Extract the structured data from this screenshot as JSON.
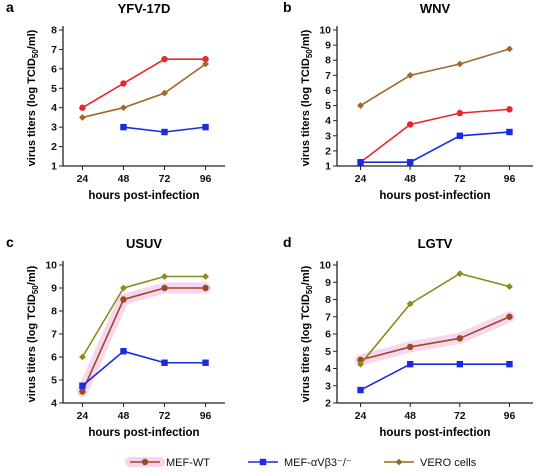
{
  "colors": {
    "mef_wt": "#e8262b",
    "mef_knockout": "#1b2be0",
    "vero": "#a0682a",
    "mef_wt_usuv_lgtv": "#9c4a24",
    "vero_usuv": "#8c8a1a",
    "highlight": "#f6d3ee",
    "axis": "#222222"
  },
  "legend": {
    "items": [
      {
        "label": "MEF-WT",
        "color": "#9c4a24",
        "marker": "circle"
      },
      {
        "label": "MEF-αVβ3⁻/⁻",
        "color": "#1b2be0",
        "marker": "square"
      },
      {
        "label": "VERO cells",
        "color": "#8c6d1f",
        "marker": "diamond"
      }
    ]
  },
  "chart_data": [
    {
      "panel": "a",
      "title": "YFV-17D",
      "type": "line",
      "xlabel": "hours post-infection",
      "ylabel": "virus titers (log TCID50/ml)",
      "categories": [
        "24",
        "48",
        "72",
        "96"
      ],
      "ylim": [
        1,
        8
      ],
      "yticks": [
        1,
        2,
        3,
        4,
        5,
        6,
        7,
        8
      ],
      "series": [
        {
          "name": "MEF-WT",
          "color": "#e8262b",
          "marker": "circle",
          "values": [
            4.0,
            5.25,
            6.5,
            6.5
          ]
        },
        {
          "name": "MEF-αVβ3⁻/⁻",
          "color": "#1b2be0",
          "marker": "square",
          "values": [
            null,
            3.0,
            2.75,
            3.0
          ]
        },
        {
          "name": "VERO cells",
          "color": "#a0682a",
          "marker": "diamond",
          "values": [
            3.5,
            4.0,
            4.75,
            6.25
          ]
        }
      ]
    },
    {
      "panel": "b",
      "title": "WNV",
      "type": "line",
      "xlabel": "hours post-infection",
      "ylabel": "virus titers (log TCID50/ml)",
      "categories": [
        "24",
        "48",
        "72",
        "96"
      ],
      "ylim": [
        1,
        10
      ],
      "yticks": [
        1,
        2,
        3,
        4,
        5,
        6,
        7,
        8,
        9,
        10
      ],
      "series": [
        {
          "name": "MEF-WT",
          "color": "#e8262b",
          "marker": "circle",
          "values": [
            1.25,
            3.75,
            4.5,
            4.75
          ]
        },
        {
          "name": "MEF-αVβ3⁻/⁻",
          "color": "#1b2be0",
          "marker": "square",
          "values": [
            1.25,
            1.25,
            3.0,
            3.25
          ]
        },
        {
          "name": "VERO cells",
          "color": "#a0682a",
          "marker": "diamond",
          "values": [
            5.0,
            7.0,
            7.75,
            8.75
          ]
        }
      ]
    },
    {
      "panel": "c",
      "title": "USUV",
      "type": "line",
      "xlabel": "hours post-infection",
      "ylabel": "virus titers (log TCID50/ml)",
      "categories": [
        "24",
        "48",
        "72",
        "96"
      ],
      "ylim": [
        4,
        10
      ],
      "yticks": [
        4,
        5,
        6,
        7,
        8,
        9,
        10
      ],
      "series": [
        {
          "name": "MEF-WT",
          "color": "#9c4a24",
          "marker": "circle",
          "values": [
            4.5,
            8.5,
            9.0,
            9.0
          ],
          "highlight": true
        },
        {
          "name": "MEF-αVβ3⁻/⁻",
          "color": "#1b2be0",
          "marker": "square",
          "values": [
            4.75,
            6.25,
            5.75,
            5.75
          ]
        },
        {
          "name": "VERO cells",
          "color": "#8c8a1a",
          "marker": "diamond",
          "values": [
            6.0,
            9.0,
            9.5,
            9.5
          ]
        }
      ]
    },
    {
      "panel": "d",
      "title": "LGTV",
      "type": "line",
      "xlabel": "hours post-infection",
      "ylabel": "virus titers (log TCID50/ml)",
      "categories": [
        "24",
        "48",
        "72",
        "96"
      ],
      "ylim": [
        2,
        10
      ],
      "yticks": [
        2,
        3,
        4,
        5,
        6,
        7,
        8,
        9,
        10
      ],
      "series": [
        {
          "name": "MEF-WT",
          "color": "#9c4a24",
          "marker": "circle",
          "values": [
            4.5,
            5.25,
            5.75,
            7.0
          ],
          "highlight": true
        },
        {
          "name": "MEF-αVβ3⁻/⁻",
          "color": "#1b2be0",
          "marker": "square",
          "values": [
            2.75,
            4.25,
            4.25,
            4.25
          ]
        },
        {
          "name": "VERO cells",
          "color": "#8c8a1a",
          "marker": "diamond",
          "values": [
            4.25,
            7.75,
            9.5,
            8.75
          ]
        }
      ]
    }
  ]
}
